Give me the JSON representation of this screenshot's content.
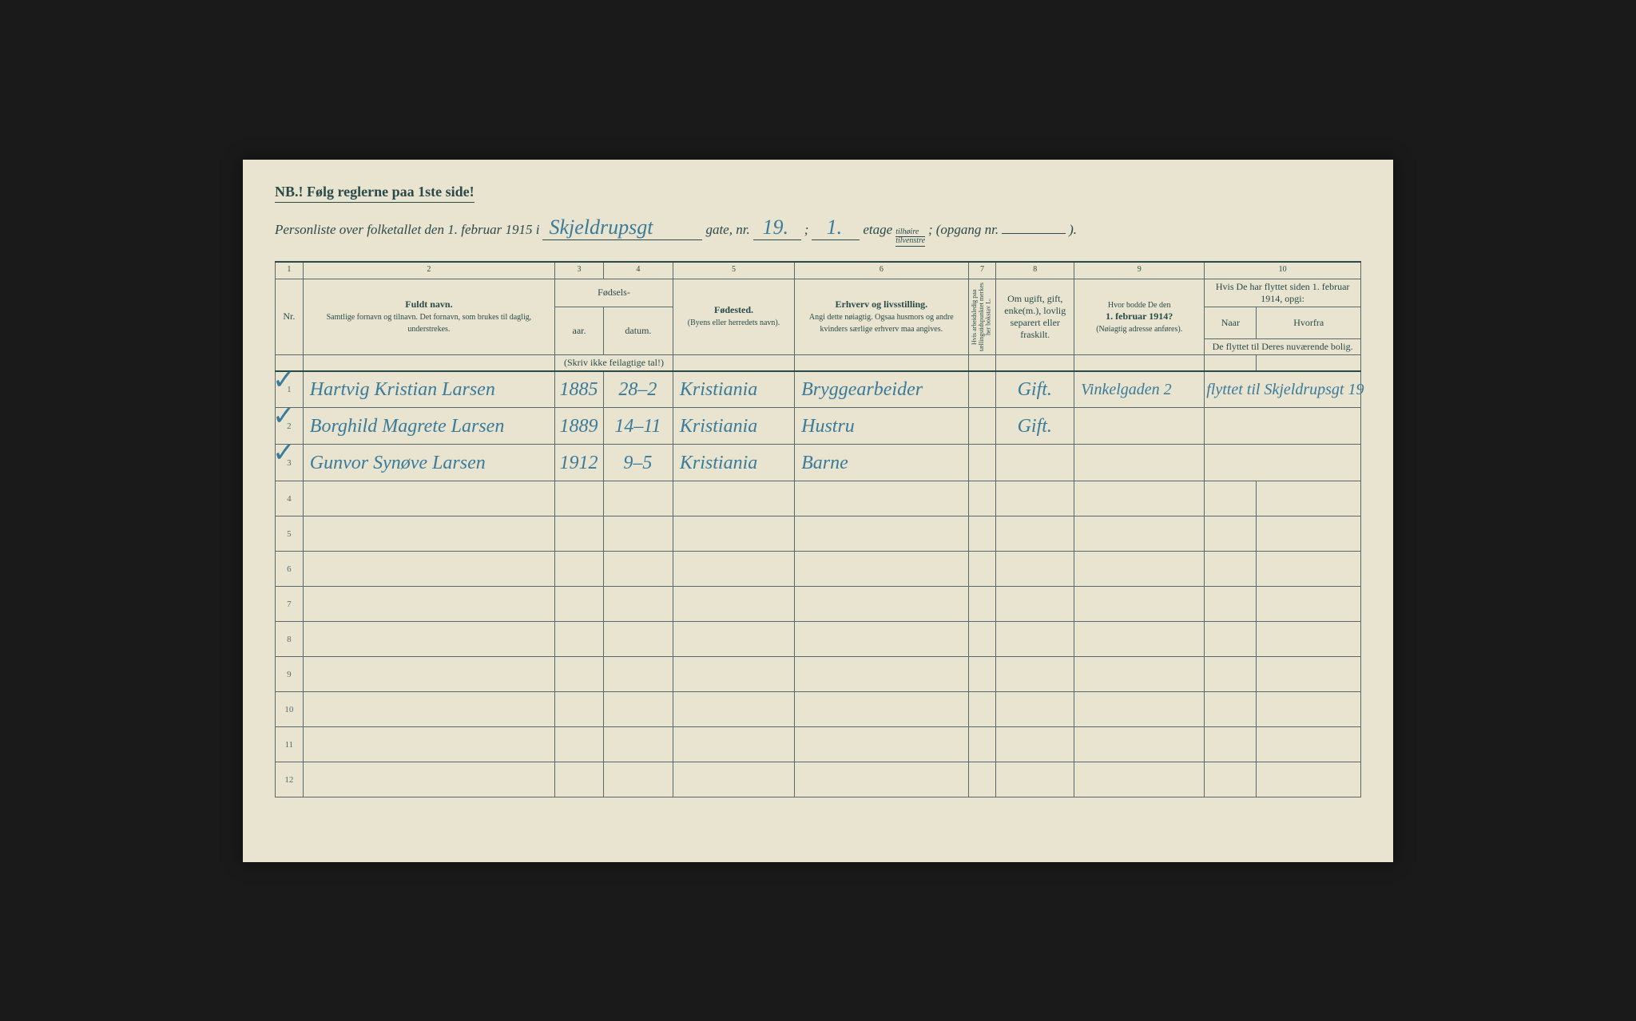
{
  "header": {
    "nb": "NB.! Følg reglerne paa 1ste side!",
    "line_prefix": "Personliste over folketallet den 1. februar 1915 i",
    "street": "Skjeldrupsgt",
    "gate_label": "gate, nr.",
    "gate_nr": "19.",
    "semicolon1": ";",
    "etage_nr": "1.",
    "etage_label": "etage",
    "tilhoire": "tilhøire",
    "tilvenstre": "tilvenstre",
    "semicolon2": ";",
    "opgang": "(opgang nr.",
    "opgang_val": "",
    "close": ")."
  },
  "columns": {
    "c1": "1",
    "c2": "2",
    "c3": "3",
    "c4": "4",
    "c5": "5",
    "c6": "6",
    "c7": "7",
    "c8": "8",
    "c9": "9",
    "c10": "10",
    "nr": "Nr.",
    "fuldt_navn": "Fuldt navn.",
    "name_sub": "Samtlige fornavn og tilnavn.  Det fornavn, som brukes til daglig, understrekes.",
    "fodsels": "Fødsels-",
    "aar": "aar.",
    "datum": "datum.",
    "fodsels_note": "(Skriv ikke feilagtige tal!)",
    "fodested": "Fødested.",
    "fodested_sub": "(Byens eller herredets navn).",
    "erhverv": "Erhverv og livsstilling.",
    "erhverv_sub": "Angi dette nøiagtig. Ogsaa husmors og andre kvinders særlige erhverv maa angives.",
    "col7": "Hvis arbeidsledig paa tællingstidspunktet merkes her bokstav L.",
    "col8": "Om ugift, gift, enke(m.), lovlig separert eller fraskilt.",
    "col9_a": "Hvor bodde De den",
    "col9_b": "1. februar 1914?",
    "col9_c": "(Nøiagtig adresse anføres).",
    "col10_top": "Hvis De har flyttet siden 1. februar 1914, opgi:",
    "col10_naar": "Naar",
    "col10_hvorfra": "Hvorfra",
    "col10_sub": "De flyttet til Deres nuværende bolig."
  },
  "rows": [
    {
      "nr": "1",
      "check": "✓",
      "name": "Hartvig Kristian Larsen",
      "year": "1885",
      "date": "28–2",
      "place": "Kristiania",
      "occ": "Bryggearbeider",
      "marital": "Gift.",
      "addr1914": "Vinkelgaden 2",
      "moved": "flyttet til Skjeldrupsgt 19"
    },
    {
      "nr": "2",
      "check": "✓",
      "name": "Borghild Magrete Larsen",
      "year": "1889",
      "date": "14–11",
      "place": "Kristiania",
      "occ": "Hustru",
      "marital": "Gift.",
      "addr1914": "",
      "moved": ""
    },
    {
      "nr": "3",
      "check": "✓",
      "name": "Gunvor Synøve Larsen",
      "year": "1912",
      "date": "9–5",
      "place": "Kristiania",
      "occ": "Barne",
      "marital": "",
      "addr1914": "",
      "moved": ""
    }
  ],
  "empty_rows": [
    "4",
    "5",
    "6",
    "7",
    "8",
    "9",
    "10",
    "11",
    "12"
  ],
  "colors": {
    "paper": "#e8e4d0",
    "ink_print": "#2a4a4a",
    "ink_hand": "#3a7a9a",
    "border": "#5a6a6a",
    "page_bg": "#1a1a1a"
  }
}
